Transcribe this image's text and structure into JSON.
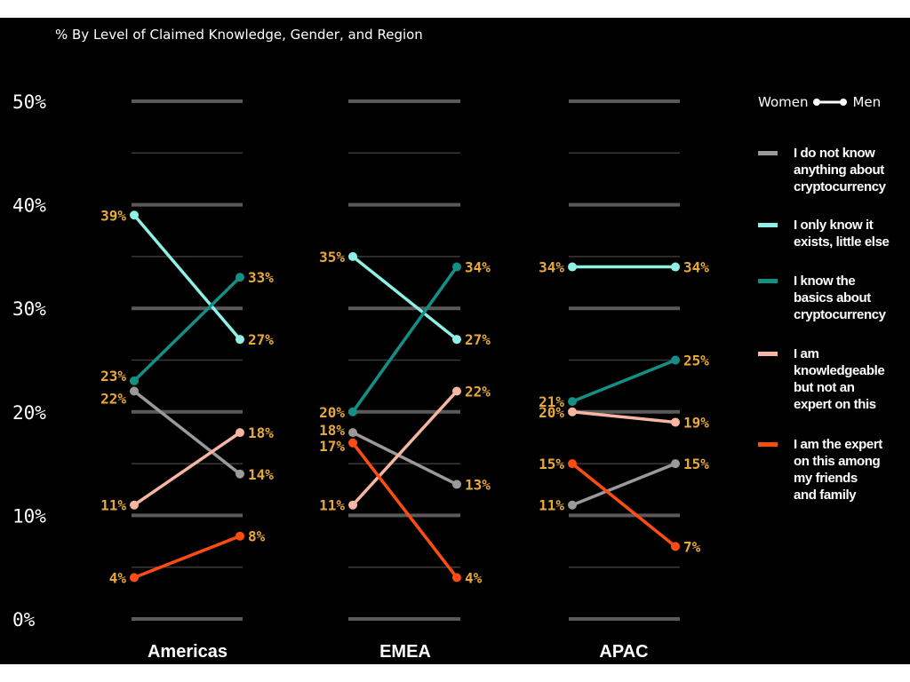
{
  "chart_data": {
    "type": "line",
    "subtitle": "% By Level of Claimed Knowledge, Gender, and Region",
    "ylim": [
      0,
      50
    ],
    "yticks": [
      0,
      10,
      20,
      30,
      40,
      50
    ],
    "ytick_labels": [
      "0%",
      "10%",
      "20%",
      "30%",
      "40%",
      "50%"
    ],
    "grid": true,
    "gender_legend": {
      "left": "Women",
      "right": "Men"
    },
    "series": [
      {
        "key": "none",
        "name": "I do not know\nanything about\ncryptocurrency",
        "color": "#9a9a9a"
      },
      {
        "key": "exists",
        "name": "I only know it\nexists, little else",
        "color": "#8ff1e6"
      },
      {
        "key": "basics",
        "name": "I know the\nbasics about\ncryptocurrency",
        "color": "#138f86"
      },
      {
        "key": "knowl",
        "name": "I am\nknowledgeable\nbut not an\nexpert on this",
        "color": "#f7b6a2"
      },
      {
        "key": "expert",
        "name": "I am the expert\non this among\nmy friends\nand family",
        "color": "#ff4d12"
      }
    ],
    "regions": [
      {
        "name": "Americas",
        "values": {
          "none": {
            "women": 22,
            "men": 14,
            "women_label": "22%",
            "men_label": "14%"
          },
          "exists": {
            "women": 39,
            "men": 27,
            "women_label": "39%",
            "men_label": "27%"
          },
          "basics": {
            "women": 23,
            "men": 33,
            "women_label": "23%",
            "men_label": "33%"
          },
          "knowl": {
            "women": 11,
            "men": 18,
            "women_label": "11%",
            "men_label": "18%"
          },
          "expert": {
            "women": 4,
            "men": 8,
            "women_label": "4%",
            "men_label": "8%"
          }
        }
      },
      {
        "name": "EMEA",
        "values": {
          "none": {
            "women": 18,
            "men": 13,
            "women_label": "18%",
            "men_label": "13%"
          },
          "exists": {
            "women": 35,
            "men": 27,
            "women_label": "35%",
            "men_label": "27%"
          },
          "basics": {
            "women": 20,
            "men": 34,
            "women_label": "20%",
            "men_label": "34%"
          },
          "knowl": {
            "women": 11,
            "men": 22,
            "women_label": "11%",
            "men_label": "22%"
          },
          "expert": {
            "women": 17,
            "men": 4,
            "women_label": "17%",
            "men_label": "4%"
          }
        }
      },
      {
        "name": "APAC",
        "values": {
          "none": {
            "women": 11,
            "men": 15,
            "women_label": "11%",
            "men_label": "15%"
          },
          "exists": {
            "women": 34,
            "men": 34,
            "women_label": "34%",
            "men_label": "34%"
          },
          "basics": {
            "women": 21,
            "men": 25,
            "women_label": "21%",
            "men_label": "25%"
          },
          "knowl": {
            "women": 20,
            "men": 19,
            "women_label": "20%",
            "men_label": "19%"
          },
          "expert": {
            "women": 15,
            "men": 7,
            "women_label": "15%",
            "men_label": "7%"
          }
        }
      }
    ]
  }
}
